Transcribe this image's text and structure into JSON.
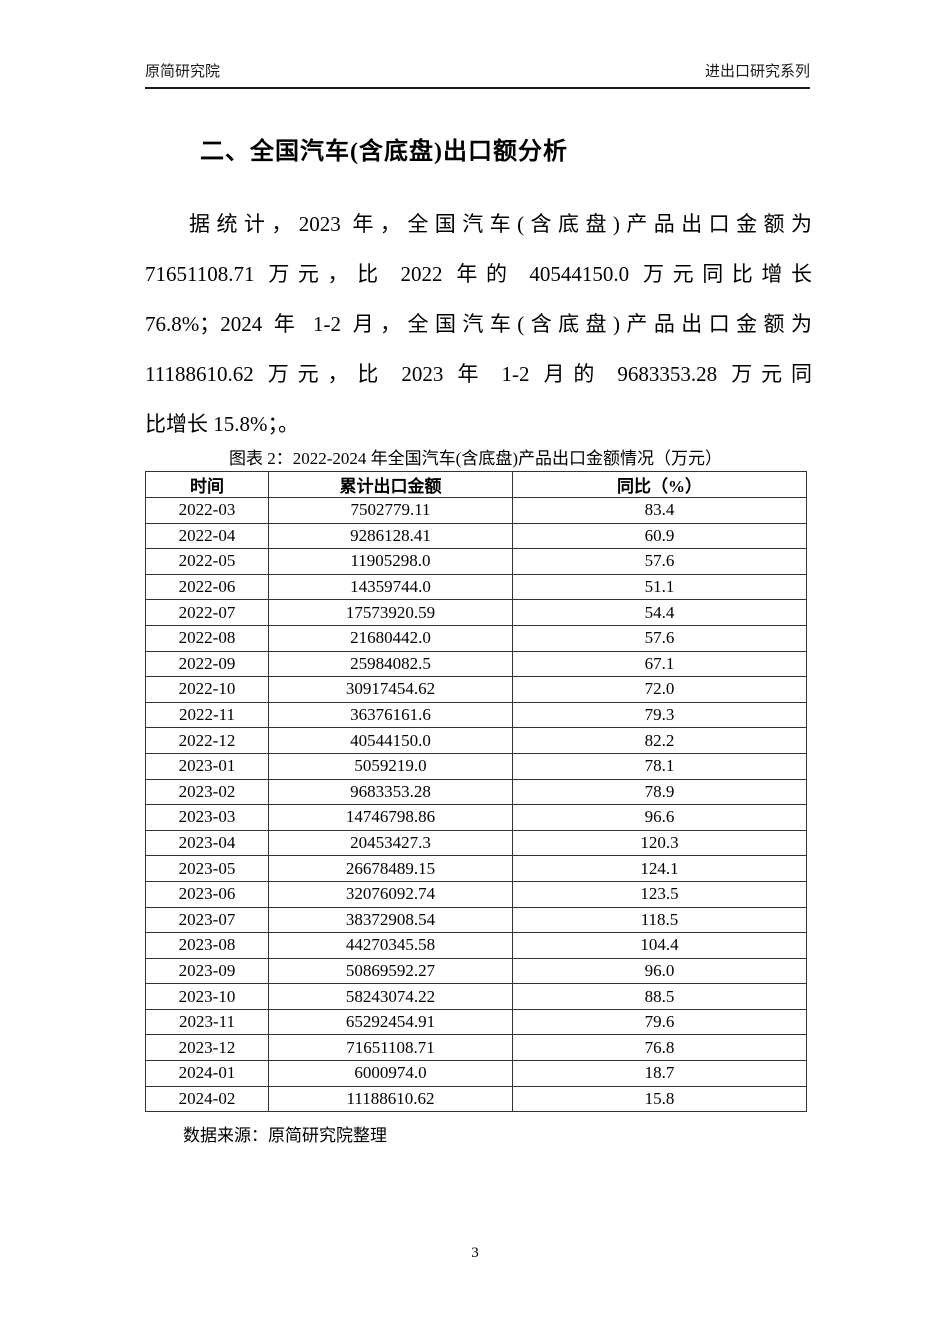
{
  "header": {
    "left": "原简研究院",
    "right": "进出口研究系列"
  },
  "section": {
    "title": "二、全国汽车(含底盘)出口额分析"
  },
  "paragraph_lines": [
    "据统计，2023 年，全国汽车(含底盘)产品出口金额为",
    "71651108.71 万元，比 2022 年的 40544150.0 万元同比增长",
    "76.8%；2024 年 1-2 月，全国汽车(含底盘)产品出口金额为",
    "11188610.62 万元，比 2023 年 1-2 月的 9683353.28 万元同",
    "比增长 15.8%；。"
  ],
  "table": {
    "caption": "图表 2：2022-2024 年全国汽车(含底盘)产品出口金额情况（万元）",
    "columns": [
      "时间",
      "累计出口金额",
      "同比（%）"
    ],
    "rows": [
      [
        "2022-03",
        "7502779.11",
        "83.4"
      ],
      [
        "2022-04",
        "9286128.41",
        "60.9"
      ],
      [
        "2022-05",
        "11905298.0",
        "57.6"
      ],
      [
        "2022-06",
        "14359744.0",
        "51.1"
      ],
      [
        "2022-07",
        "17573920.59",
        "54.4"
      ],
      [
        "2022-08",
        "21680442.0",
        "57.6"
      ],
      [
        "2022-09",
        "25984082.5",
        "67.1"
      ],
      [
        "2022-10",
        "30917454.62",
        "72.0"
      ],
      [
        "2022-11",
        "36376161.6",
        "79.3"
      ],
      [
        "2022-12",
        "40544150.0",
        "82.2"
      ],
      [
        "2023-01",
        "5059219.0",
        "78.1"
      ],
      [
        "2023-02",
        "9683353.28",
        "78.9"
      ],
      [
        "2023-03",
        "14746798.86",
        "96.6"
      ],
      [
        "2023-04",
        "20453427.3",
        "120.3"
      ],
      [
        "2023-05",
        "26678489.15",
        "124.1"
      ],
      [
        "2023-06",
        "32076092.74",
        "123.5"
      ],
      [
        "2023-07",
        "38372908.54",
        "118.5"
      ],
      [
        "2023-08",
        "44270345.58",
        "104.4"
      ],
      [
        "2023-09",
        "50869592.27",
        "96.0"
      ],
      [
        "2023-10",
        "58243074.22",
        "88.5"
      ],
      [
        "2023-11",
        "65292454.91",
        "79.6"
      ],
      [
        "2023-12",
        "71651108.71",
        "76.8"
      ],
      [
        "2024-01",
        "6000974.0",
        "18.7"
      ],
      [
        "2024-02",
        "11188610.62",
        "15.8"
      ]
    ],
    "source": "数据来源：原简研究院整理"
  },
  "footer": {
    "page_number": "3"
  }
}
